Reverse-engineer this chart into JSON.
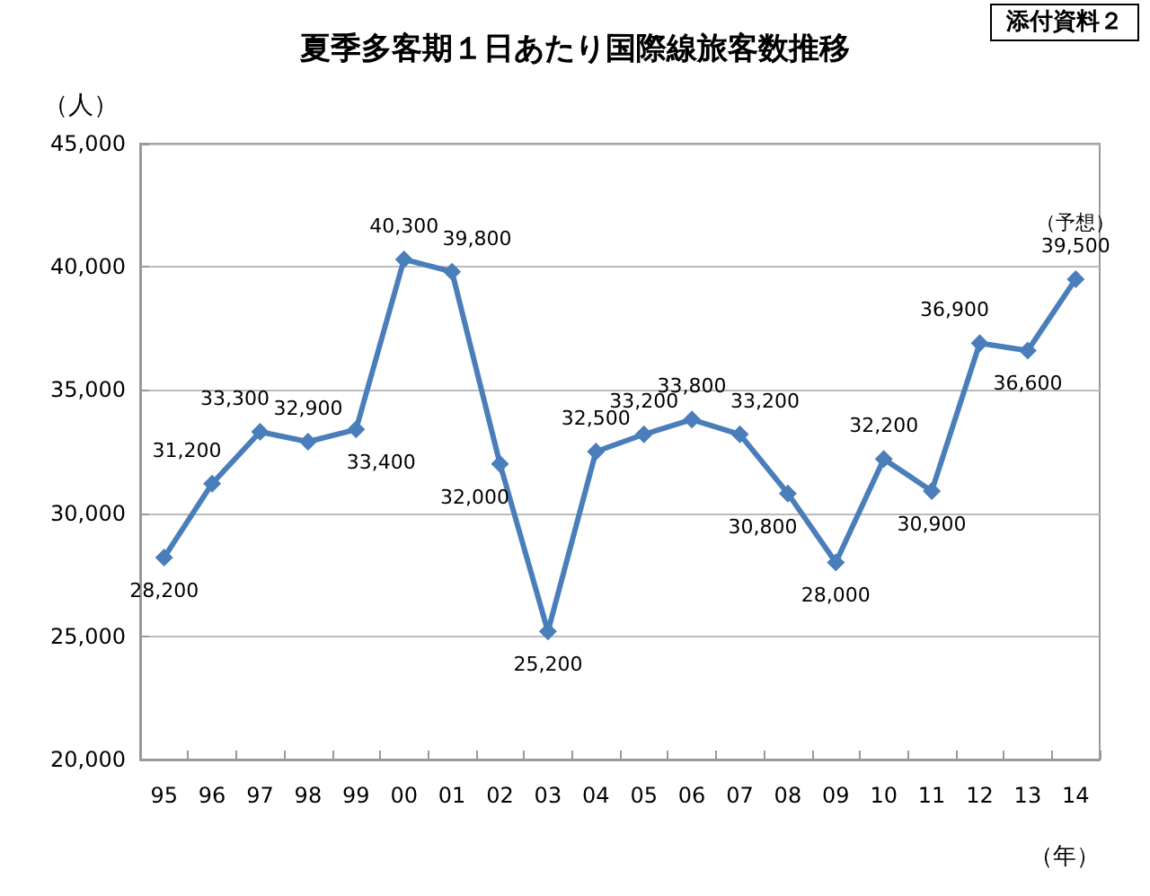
{
  "chart_data": {
    "type": "line",
    "title": "夏季多客期１日あたり国際線旅客数推移",
    "ylabel": "（人）",
    "xlabel": "（年）",
    "categories": [
      "95",
      "96",
      "97",
      "98",
      "99",
      "00",
      "01",
      "02",
      "03",
      "04",
      "05",
      "06",
      "07",
      "08",
      "09",
      "10",
      "11",
      "12",
      "13",
      "14"
    ],
    "series": [
      {
        "color": "#4a7ebb",
        "values": [
          28200,
          31200,
          33300,
          32900,
          33400,
          40300,
          39800,
          32000,
          25200,
          32500,
          33200,
          33800,
          33200,
          30800,
          28000,
          32200,
          30900,
          36900,
          36600,
          39500
        ],
        "value_labels": [
          "28,200",
          "31,200",
          "33,300",
          "32,900",
          "33,400",
          "40,300",
          "39,800",
          "32,000",
          "25,200",
          "32,500",
          "33,200",
          "33,800",
          "33,200",
          "30,800",
          "28,000",
          "32,200",
          "30,900",
          "36,900",
          "36,600",
          "39,500"
        ]
      }
    ],
    "ylim": [
      20000,
      45000
    ],
    "yticks": [
      {
        "value": 20000,
        "label": "20,000"
      },
      {
        "value": 25000,
        "label": "25,000"
      },
      {
        "value": 30000,
        "label": "30,000"
      },
      {
        "value": 35000,
        "label": "35,000"
      },
      {
        "value": 40000,
        "label": "40,000"
      },
      {
        "value": 45000,
        "label": "45,000"
      }
    ],
    "grid": "y",
    "marker": "diamond",
    "line_style": "solid",
    "annotations": [
      {
        "text": "（予想）",
        "x": "14",
        "y": 39500
      },
      "添付資料２"
    ]
  }
}
